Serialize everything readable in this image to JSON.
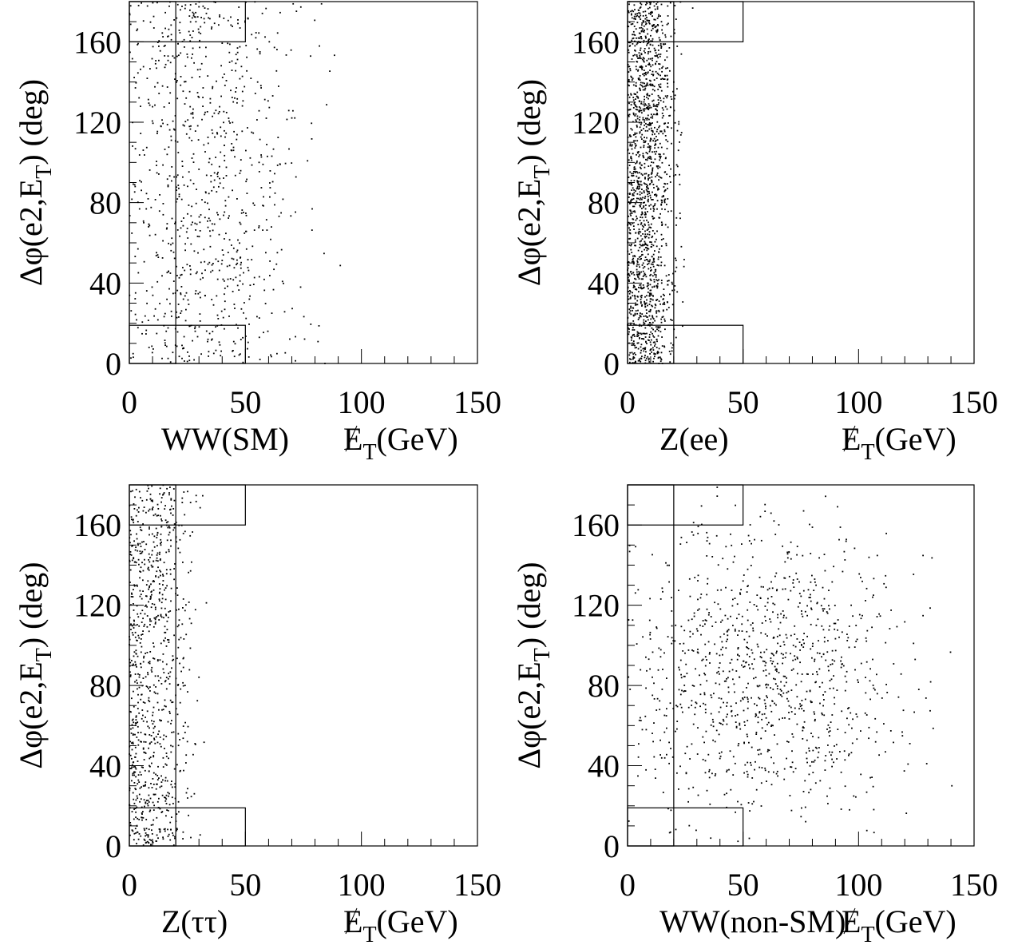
{
  "chart_data": [
    {
      "type": "scatter",
      "sample_label": "WW(SM)",
      "xlabel": "E_T(GeV)",
      "ylabel": "Δφ(e2,E_T) (deg)",
      "xlim": [
        0,
        150
      ],
      "ylim": [
        0,
        180
      ],
      "x_ticks": [
        0,
        50,
        100,
        150
      ],
      "y_ticks": [
        0,
        40,
        80,
        120,
        160
      ],
      "cut_regions": [
        {
          "name": "low-pt-cut",
          "x": [
            0,
            20
          ],
          "y": [
            0,
            180
          ]
        },
        {
          "name": "upper-region",
          "x": [
            0,
            50
          ],
          "y": [
            160,
            180
          ]
        },
        {
          "name": "lower-region",
          "x": [
            0,
            50
          ],
          "y": [
            0,
            19
          ]
        }
      ],
      "distribution": {
        "x_center": 35,
        "x_spread": 20,
        "y_mode": "uniform",
        "n_points": 900,
        "seed": 11
      },
      "points": []
    },
    {
      "type": "scatter",
      "sample_label": "Z(ee)",
      "xlabel": "E_T(GeV)",
      "ylabel": "Δφ(e2,E_T) (deg)",
      "xlim": [
        0,
        150
      ],
      "ylim": [
        0,
        180
      ],
      "x_ticks": [
        0,
        50,
        100,
        150
      ],
      "y_ticks": [
        0,
        40,
        80,
        120,
        160
      ],
      "cut_regions": [
        {
          "name": "low-pt-cut",
          "x": [
            0,
            20
          ],
          "y": [
            0,
            180
          ]
        },
        {
          "name": "upper-region",
          "x": [
            0,
            50
          ],
          "y": [
            160,
            180
          ]
        },
        {
          "name": "lower-region",
          "x": [
            0,
            50
          ],
          "y": [
            0,
            19
          ]
        }
      ],
      "distribution": {
        "x_center": 8,
        "x_spread": 6,
        "y_mode": "uniform",
        "n_points": 1600,
        "seed": 23
      },
      "points": []
    },
    {
      "type": "scatter",
      "sample_label": "Z(ττ)",
      "xlabel": "E_T(GeV)",
      "ylabel": "Δφ(e2,E_T) (deg)",
      "xlim": [
        0,
        150
      ],
      "ylim": [
        0,
        180
      ],
      "x_ticks": [
        0,
        50,
        100,
        150
      ],
      "y_ticks": [
        0,
        40,
        80,
        120,
        160
      ],
      "cut_regions": [
        {
          "name": "low-pt-cut",
          "x": [
            0,
            20
          ],
          "y": [
            0,
            180
          ]
        },
        {
          "name": "upper-region",
          "x": [
            0,
            50
          ],
          "y": [
            160,
            180
          ]
        },
        {
          "name": "lower-region",
          "x": [
            0,
            50
          ],
          "y": [
            0,
            19
          ]
        }
      ],
      "distribution": {
        "x_center": 10,
        "x_spread": 9,
        "y_mode": "uniform",
        "n_points": 900,
        "seed": 37
      },
      "points": []
    },
    {
      "type": "scatter",
      "sample_label": "WW(non-SM)",
      "xlabel": "E_T(GeV)",
      "ylabel": "Δφ(e2,E_T) (deg)",
      "xlim": [
        0,
        150
      ],
      "ylim": [
        0,
        180
      ],
      "x_ticks": [
        0,
        50,
        100,
        150
      ],
      "y_ticks": [
        0,
        40,
        80,
        120,
        160
      ],
      "cut_regions": [
        {
          "name": "low-pt-cut",
          "x": [
            0,
            20
          ],
          "y": [
            0,
            180
          ]
        },
        {
          "name": "upper-region",
          "x": [
            0,
            50
          ],
          "y": [
            160,
            180
          ]
        },
        {
          "name": "lower-region",
          "x": [
            0,
            50
          ],
          "y": [
            0,
            19
          ]
        }
      ],
      "distribution": {
        "x_center": 60,
        "x_spread": 30,
        "y_mode": "central",
        "n_points": 1100,
        "seed": 51
      },
      "points": []
    }
  ]
}
